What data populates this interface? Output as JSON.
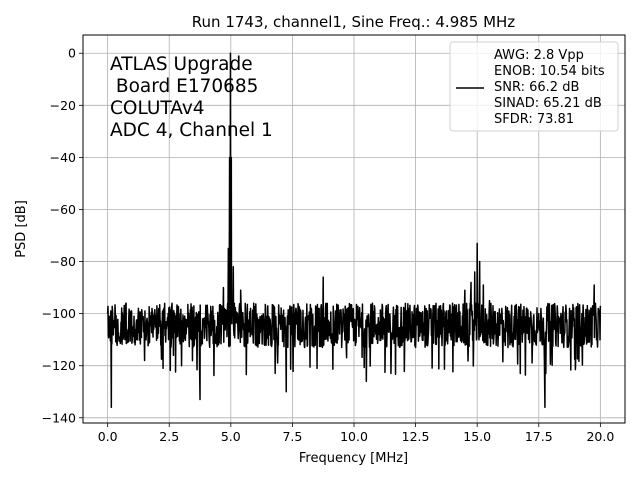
{
  "chart_data": {
    "type": "line",
    "title": "Run 1743, channel1, Sine Freq.: 4.985 MHz",
    "xlabel": "Frequency [MHz]",
    "ylabel": "PSD [dB]",
    "xlim": [
      -1.0,
      21.0
    ],
    "ylim": [
      -142,
      7
    ],
    "grid": true,
    "xticks": [
      0.0,
      2.5,
      5.0,
      7.5,
      10.0,
      12.5,
      15.0,
      17.5,
      20.0
    ],
    "xtick_labels": [
      "0.0",
      "2.5",
      "5.0",
      "7.5",
      "10.0",
      "12.5",
      "15.0",
      "17.5",
      "20.0"
    ],
    "yticks": [
      0,
      -20,
      -40,
      -60,
      -80,
      -100,
      -120,
      -140
    ],
    "ytick_labels": [
      "0",
      "−20",
      "−40",
      "−60",
      "−80",
      "−100",
      "−120",
      "−140"
    ],
    "annotation_lines": [
      "ATLAS Upgrade",
      " Board E170685",
      "COLUTAv4",
      "ADC 4, Channel 1"
    ],
    "legend": {
      "placement": "top-right",
      "lines": [
        "AWG: 2.8 Vpp",
        "ENOB: 10.54 bits",
        "SNR: 66.2 dB",
        "SINAD: 65.21 dB",
        "SFDR: 73.81"
      ]
    },
    "series": [
      {
        "color": "#000000",
        "noise_floor_db": -106,
        "noise_band_db": [
          -113,
          -96
        ],
        "points": [
          [
            0.0,
            -100
          ],
          [
            0.1,
            -108
          ],
          [
            0.15,
            -136
          ],
          [
            0.25,
            -103
          ],
          [
            0.5,
            -109
          ],
          [
            0.75,
            -96
          ],
          [
            1.0,
            -110
          ],
          [
            1.25,
            -98
          ],
          [
            1.5,
            -118
          ],
          [
            1.75,
            -104
          ],
          [
            2.0,
            -97
          ],
          [
            2.25,
            -121
          ],
          [
            2.5,
            -106
          ],
          [
            2.75,
            -101
          ],
          [
            3.0,
            -120
          ],
          [
            3.25,
            -105
          ],
          [
            3.5,
            -97
          ],
          [
            3.75,
            -133
          ],
          [
            4.0,
            -105
          ],
          [
            4.25,
            -99
          ],
          [
            4.5,
            -112
          ],
          [
            4.7,
            -90
          ],
          [
            4.8,
            -102
          ],
          [
            4.9,
            -75
          ],
          [
            4.95,
            -40
          ],
          [
            4.985,
            0
          ],
          [
            5.02,
            -40
          ],
          [
            5.1,
            -82
          ],
          [
            5.2,
            -103
          ],
          [
            5.4,
            -91
          ],
          [
            5.6,
            -108
          ],
          [
            5.8,
            -98
          ],
          [
            6.0,
            -112
          ],
          [
            6.25,
            -101
          ],
          [
            6.5,
            -97
          ],
          [
            6.75,
            -110
          ],
          [
            7.0,
            -104
          ],
          [
            7.25,
            -130
          ],
          [
            7.5,
            -100
          ],
          [
            7.75,
            -98
          ],
          [
            8.0,
            -113
          ],
          [
            8.25,
            -104
          ],
          [
            8.5,
            -121
          ],
          [
            8.75,
            -86
          ],
          [
            9.0,
            -108
          ],
          [
            9.25,
            -99
          ],
          [
            9.5,
            -113
          ],
          [
            9.75,
            -98
          ],
          [
            10.0,
            -109
          ],
          [
            10.25,
            -105
          ],
          [
            10.5,
            -126
          ],
          [
            10.75,
            -96
          ],
          [
            11.0,
            -108
          ],
          [
            11.25,
            -102
          ],
          [
            11.5,
            -123
          ],
          [
            11.75,
            -97
          ],
          [
            12.0,
            -107
          ],
          [
            12.25,
            -98
          ],
          [
            12.5,
            -113
          ],
          [
            12.75,
            -100
          ],
          [
            13.0,
            -111
          ],
          [
            13.25,
            -97
          ],
          [
            13.5,
            -108
          ],
          [
            13.75,
            -99
          ],
          [
            14.0,
            -96
          ],
          [
            14.25,
            -109
          ],
          [
            14.5,
            -91
          ],
          [
            14.75,
            -88
          ],
          [
            14.9,
            -84
          ],
          [
            15.0,
            -73
          ],
          [
            15.1,
            -80
          ],
          [
            15.25,
            -89
          ],
          [
            15.5,
            -95
          ],
          [
            15.75,
            -107
          ],
          [
            16.0,
            -98
          ],
          [
            16.25,
            -113
          ],
          [
            16.5,
            -101
          ],
          [
            16.75,
            -123
          ],
          [
            17.0,
            -98
          ],
          [
            17.25,
            -108
          ],
          [
            17.5,
            -100
          ],
          [
            17.75,
            -136
          ],
          [
            18.0,
            -103
          ],
          [
            18.25,
            -97
          ],
          [
            18.5,
            -110
          ],
          [
            18.75,
            -98
          ],
          [
            19.0,
            -117
          ],
          [
            19.25,
            -100
          ],
          [
            19.5,
            -111
          ],
          [
            19.75,
            -89
          ],
          [
            20.0,
            -97
          ]
        ]
      }
    ]
  }
}
